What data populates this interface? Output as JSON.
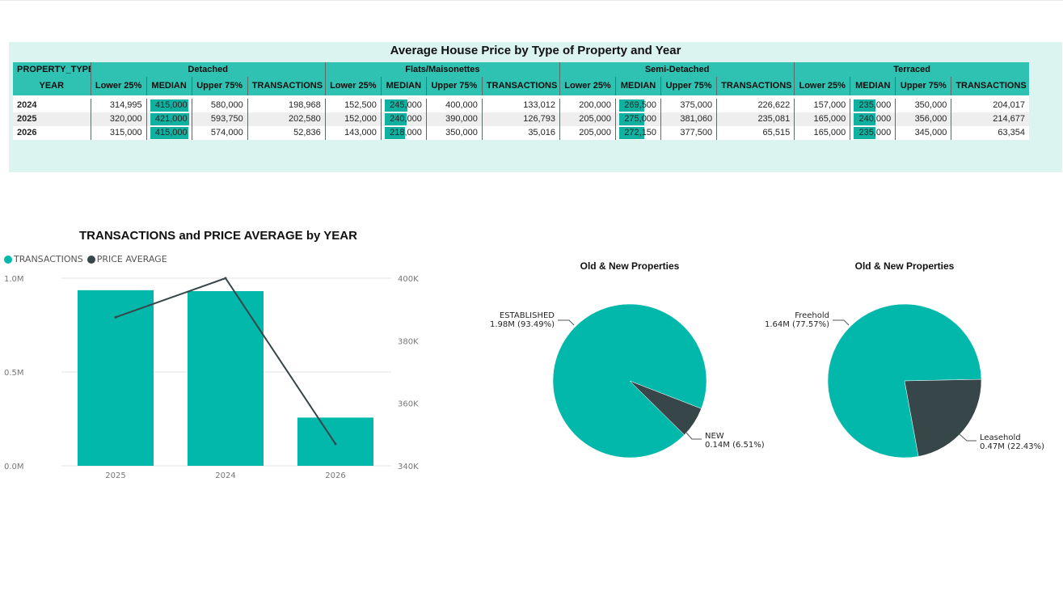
{
  "matrix": {
    "title": "Average House Price by Type of Property and Year",
    "row_header_top": "PROPERTY_TYPE",
    "row_header_bottom": "YEAR",
    "columns": [
      "Lower 25%",
      "MEDIAN",
      "Upper 75%",
      "TRANSACTIONS"
    ],
    "median_max": 421000,
    "groups": [
      {
        "name": "Detached"
      },
      {
        "name": "Flats/Maisonettes"
      },
      {
        "name": "Semi-Detached"
      },
      {
        "name": "Terraced"
      }
    ],
    "rows": [
      {
        "year": "2024",
        "cells": [
          [
            "314,995",
            "415,000",
            "580,000",
            "198,968"
          ],
          [
            "152,500",
            "245,000",
            "400,000",
            "133,012"
          ],
          [
            "200,000",
            "269,500",
            "375,000",
            "226,622"
          ],
          [
            "157,000",
            "235,000",
            "350,000",
            "204,017"
          ]
        ]
      },
      {
        "year": "2025",
        "cells": [
          [
            "320,000",
            "421,000",
            "593,750",
            "202,580"
          ],
          [
            "152,000",
            "240,000",
            "390,000",
            "126,793"
          ],
          [
            "205,000",
            "275,000",
            "381,060",
            "235,081"
          ],
          [
            "165,000",
            "240,000",
            "356,000",
            "214,677"
          ]
        ]
      },
      {
        "year": "2026",
        "cells": [
          [
            "315,000",
            "415,000",
            "574,000",
            "52,836"
          ],
          [
            "143,000",
            "218,000",
            "350,000",
            "35,016"
          ],
          [
            "205,000",
            "272,150",
            "377,500",
            "65,515"
          ],
          [
            "165,000",
            "235,000",
            "345,000",
            "63,354"
          ]
        ]
      }
    ]
  },
  "chart_data": [
    {
      "type": "bar",
      "title": "TRANSACTIONS and PRICE AVERAGE by YEAR",
      "categories": [
        "2025",
        "2024",
        "2026"
      ],
      "series": [
        {
          "name": "TRANSACTIONS",
          "kind": "bar",
          "axis": "left",
          "values": [
            936000,
            931000,
            257000
          ]
        },
        {
          "name": "PRICE AVERAGE",
          "kind": "line",
          "axis": "right",
          "values": [
            387500,
            400000,
            347000
          ]
        }
      ],
      "y_left": {
        "min": 0,
        "max": 1000000,
        "ticks": [
          {
            "v": 0,
            "label": "0.0M"
          },
          {
            "v": 500000,
            "label": "0.5M"
          },
          {
            "v": 1000000,
            "label": "1.0M"
          }
        ]
      },
      "y_right": {
        "min": 340000,
        "max": 400000,
        "ticks": [
          {
            "v": 340000,
            "label": "340K"
          },
          {
            "v": 360000,
            "label": "360K"
          },
          {
            "v": 380000,
            "label": "380K"
          },
          {
            "v": 400000,
            "label": "400K"
          }
        ]
      },
      "legend": "top-left",
      "colors": {
        "bar": "#01b8aa",
        "line": "#374649"
      }
    },
    {
      "type": "pie",
      "title": "Old & New Properties",
      "slices": [
        {
          "label": "ESTABLISHED",
          "value_label": "1.98M (93.49%)",
          "percent": 93.49,
          "color": "#01b8aa"
        },
        {
          "label": "NEW",
          "value_label": "0.14M (6.51%)",
          "percent": 6.51,
          "color": "#374649"
        }
      ]
    },
    {
      "type": "pie",
      "title": "Old & New Properties",
      "slices": [
        {
          "label": "Freehold",
          "value_label": "1.64M (77.57%)",
          "percent": 77.57,
          "color": "#01b8aa"
        },
        {
          "label": "Leasehold",
          "value_label": "0.47M (22.43%)",
          "percent": 22.43,
          "color": "#374649"
        }
      ]
    }
  ]
}
